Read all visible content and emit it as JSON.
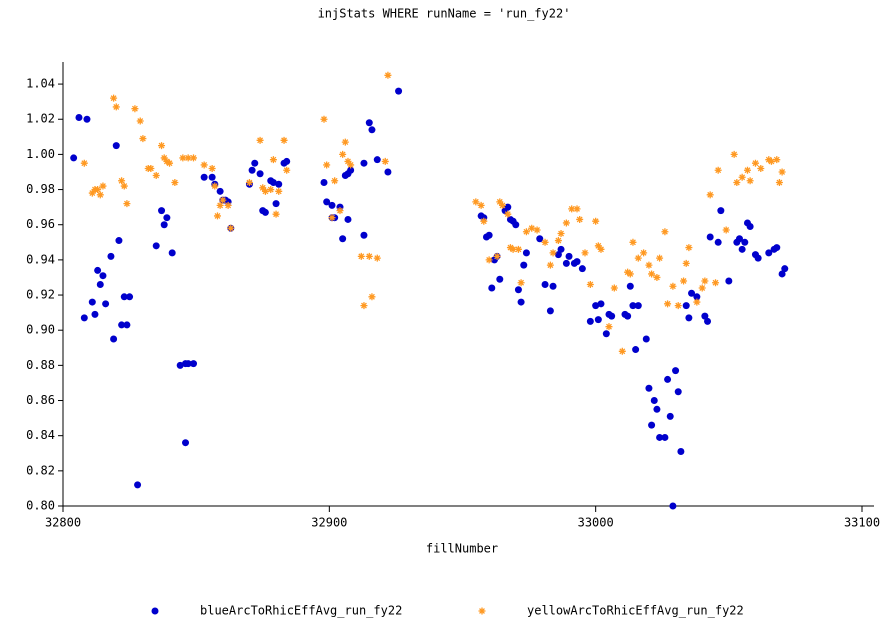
{
  "chart_data": {
    "type": "scatter",
    "title": "injStats WHERE runName = 'run_fy22'",
    "x_label": "fillNumber",
    "xlim": [
      32800,
      33100
    ],
    "xticks": [
      32800,
      32900,
      33000,
      33100
    ],
    "ylim": [
      0.8,
      1.05
    ],
    "yticks": [
      {
        "value": 0.8,
        "label": "0.80"
      },
      0.82,
      0.84,
      0.86,
      0.88,
      {
        "value": 0.9,
        "label": "0.90"
      },
      0.92,
      0.94,
      0.96,
      0.98,
      {
        "value": 1.0,
        "label": "1.00"
      },
      1.02,
      1.04
    ],
    "legend": "bottom",
    "series": [
      {
        "name": "blueArcToRhicEffAvg_run_fy22",
        "color": "#0000cc",
        "marker": "circle",
        "x": [
          32804,
          32806,
          32809,
          32808,
          32811,
          32812,
          32813,
          32814,
          32815,
          32816,
          32818,
          32819,
          32820,
          32821,
          32822,
          32823,
          32824,
          32825,
          32828,
          32835,
          32837,
          32838,
          32839,
          32841,
          32844,
          32846,
          32847,
          32849,
          32846,
          32853,
          32856,
          32857,
          32859,
          32860,
          32861,
          32862,
          32863,
          32870,
          32871,
          32872,
          32874,
          32875,
          32876,
          32878,
          32879,
          32880,
          32881,
          32883,
          32884,
          32898,
          32899,
          32901,
          32901,
          32902,
          32904,
          32905,
          32906,
          32907,
          32907,
          32908,
          32913,
          32913,
          32915,
          32916,
          32918,
          32922,
          32926,
          32957,
          32958,
          32959,
          32960,
          32961,
          32962,
          32963,
          32964,
          32966,
          32967,
          32968,
          32969,
          32970,
          32971,
          32972,
          32973,
          32974,
          32979,
          32981,
          32983,
          32984,
          32986,
          32987,
          32989,
          32990,
          32992,
          32993,
          32995,
          32998,
          33000,
          33001,
          33002,
          33004,
          33005,
          33006,
          33011,
          33012,
          33013,
          33014,
          33015,
          33016,
          33019,
          33020,
          33021,
          33022,
          33023,
          33024,
          33026,
          33027,
          33028,
          33029,
          33030,
          33031,
          33032,
          33034,
          33035,
          33036,
          33038,
          33041,
          33042,
          33043,
          33046,
          33047,
          33050,
          33053,
          33054,
          33055,
          33056,
          33057,
          33058,
          33060,
          33061,
          33065,
          33067,
          33068,
          33070,
          33071
        ],
        "values": [
          0.998,
          1.021,
          1.02,
          0.907,
          0.916,
          0.909,
          0.934,
          0.926,
          0.931,
          0.915,
          0.942,
          0.895,
          1.005,
          0.951,
          0.903,
          0.919,
          0.903,
          0.919,
          0.812,
          0.948,
          0.968,
          0.96,
          0.964,
          0.944,
          0.88,
          0.881,
          0.881,
          0.881,
          0.836,
          0.987,
          0.987,
          0.983,
          0.979,
          0.974,
          0.974,
          0.973,
          0.958,
          0.983,
          0.991,
          0.995,
          0.989,
          0.968,
          0.967,
          0.985,
          0.984,
          0.972,
          0.983,
          0.995,
          0.996,
          0.984,
          0.973,
          0.964,
          0.971,
          0.964,
          0.97,
          0.952,
          0.988,
          0.963,
          0.989,
          0.991,
          0.954,
          0.995,
          1.018,
          1.014,
          0.997,
          0.99,
          1.036,
          0.965,
          0.964,
          0.953,
          0.954,
          0.924,
          0.94,
          0.942,
          0.929,
          0.968,
          0.97,
          0.963,
          0.962,
          0.96,
          0.923,
          0.916,
          0.937,
          0.944,
          0.952,
          0.926,
          0.911,
          0.925,
          0.943,
          0.946,
          0.938,
          0.942,
          0.938,
          0.939,
          0.935,
          0.905,
          0.914,
          0.906,
          0.915,
          0.898,
          0.909,
          0.908,
          0.909,
          0.908,
          0.925,
          0.914,
          0.889,
          0.914,
          0.895,
          0.867,
          0.846,
          0.86,
          0.855,
          0.839,
          0.839,
          0.872,
          0.851,
          0.8,
          0.877,
          0.865,
          0.831,
          0.914,
          0.907,
          0.921,
          0.919,
          0.908,
          0.905,
          0.953,
          0.95,
          0.968,
          0.928,
          0.95,
          0.952,
          0.946,
          0.95,
          0.961,
          0.959,
          0.943,
          0.941,
          0.944,
          0.946,
          0.947,
          0.932,
          0.935
        ]
      },
      {
        "name": "yellowArcToRhicEffAvg_run_fy22",
        "color": "#ff9922",
        "marker": "star",
        "x": [
          32808,
          32811,
          32812,
          32813,
          32814,
          32815,
          32819,
          32820,
          32822,
          32823,
          32824,
          32827,
          32829,
          32830,
          32832,
          32833,
          32835,
          32837,
          32838,
          32839,
          32840,
          32842,
          32845,
          32847,
          32849,
          32853,
          32856,
          32857,
          32858,
          32859,
          32860,
          32862,
          32863,
          32870,
          32874,
          32875,
          32876,
          32878,
          32879,
          32880,
          32881,
          32883,
          32884,
          32898,
          32899,
          32901,
          32902,
          32904,
          32905,
          32906,
          32907,
          32908,
          32912,
          32913,
          32915,
          32916,
          32918,
          32921,
          32922,
          32955,
          32957,
          32958,
          32960,
          32963,
          32964,
          32965,
          32967,
          32968,
          32969,
          32971,
          32972,
          32974,
          32976,
          32978,
          32981,
          32983,
          32984,
          32986,
          32987,
          32989,
          32991,
          32993,
          32994,
          32996,
          32998,
          33000,
          33001,
          33002,
          33005,
          33007,
          33010,
          33012,
          33013,
          33014,
          33016,
          33018,
          33020,
          33021,
          33023,
          33024,
          33026,
          33027,
          33029,
          33031,
          33033,
          33034,
          33035,
          33038,
          33040,
          33041,
          33043,
          33045,
          33046,
          33049,
          33052,
          33053,
          33055,
          33057,
          33058,
          33060,
          33062,
          33065,
          33066,
          33068,
          33069,
          33070
        ],
        "values": [
          0.995,
          0.978,
          0.98,
          0.98,
          0.977,
          0.982,
          1.032,
          1.027,
          0.985,
          0.982,
          0.972,
          1.026,
          1.019,
          1.009,
          0.992,
          0.992,
          0.988,
          1.005,
          0.998,
          0.996,
          0.995,
          0.984,
          0.998,
          0.998,
          0.998,
          0.994,
          0.992,
          0.982,
          0.965,
          0.971,
          0.974,
          0.971,
          0.958,
          0.984,
          1.008,
          0.981,
          0.979,
          0.98,
          0.997,
          0.966,
          0.979,
          1.008,
          0.991,
          1.02,
          0.994,
          0.964,
          0.985,
          0.968,
          1.0,
          1.007,
          0.996,
          0.994,
          0.942,
          0.914,
          0.942,
          0.919,
          0.941,
          0.996,
          1.045,
          0.973,
          0.971,
          0.962,
          0.94,
          0.942,
          0.973,
          0.971,
          0.966,
          0.947,
          0.946,
          0.946,
          0.927,
          0.956,
          0.958,
          0.957,
          0.95,
          0.937,
          0.944,
          0.951,
          0.955,
          0.961,
          0.969,
          0.969,
          0.963,
          0.944,
          0.926,
          0.962,
          0.948,
          0.946,
          0.902,
          0.924,
          0.888,
          0.933,
          0.932,
          0.95,
          0.941,
          0.944,
          0.937,
          0.932,
          0.93,
          0.941,
          0.956,
          0.915,
          0.925,
          0.914,
          0.928,
          0.938,
          0.947,
          0.916,
          0.924,
          0.928,
          0.977,
          0.927,
          0.991,
          0.957,
          1.0,
          0.984,
          0.987,
          0.991,
          0.985,
          0.995,
          0.992,
          0.997,
          0.996,
          0.997,
          0.984,
          0.99
        ]
      }
    ]
  }
}
